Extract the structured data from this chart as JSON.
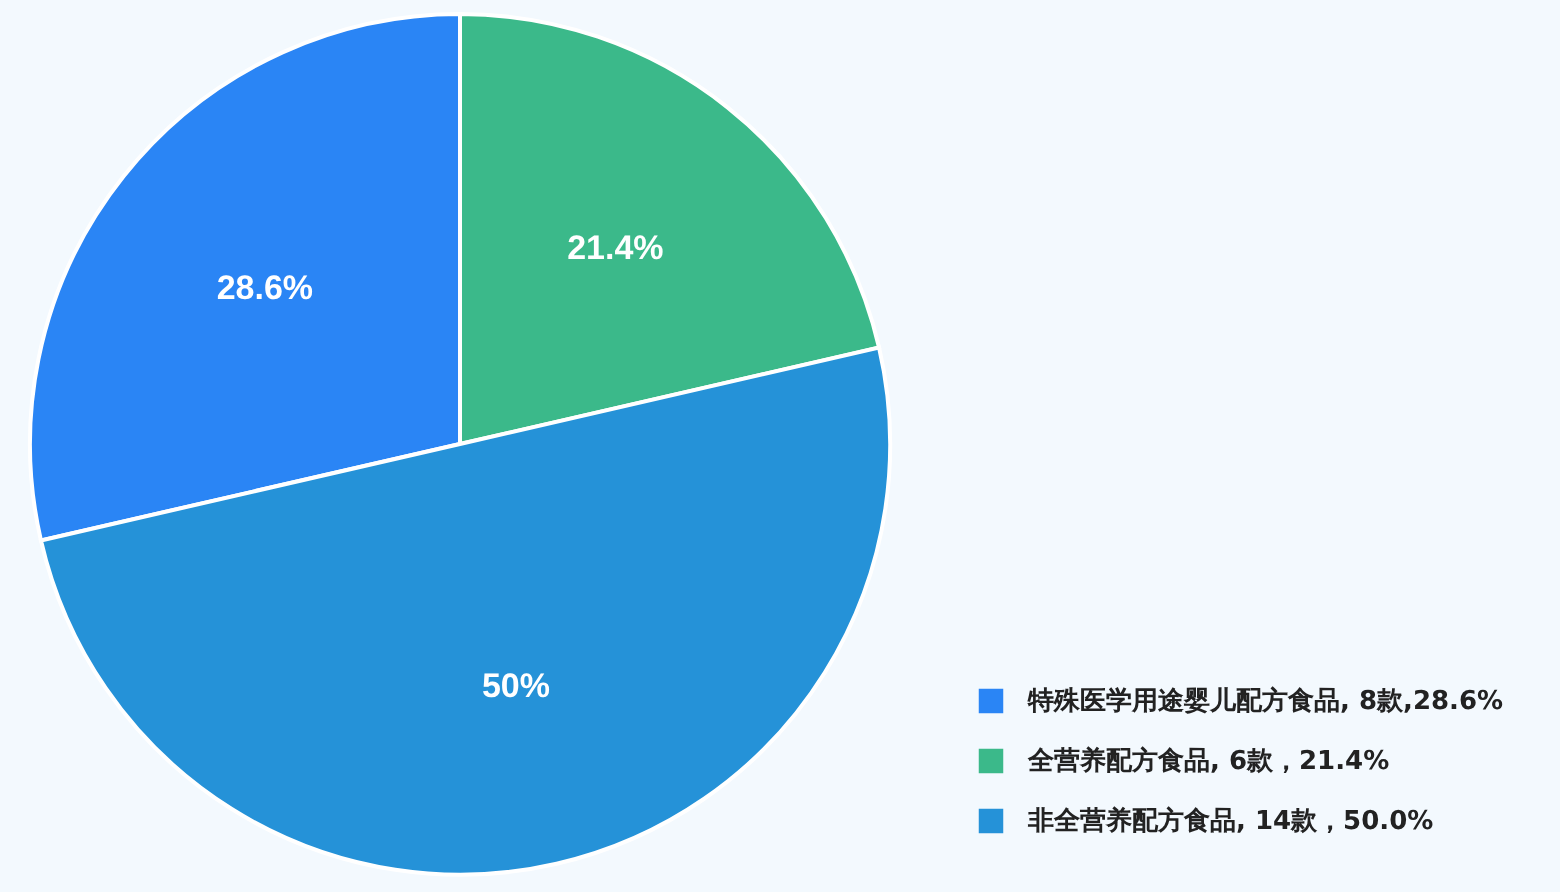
{
  "chart_data": {
    "type": "pie",
    "categories": [
      "特殊医学用途婴儿配方食品, 8款,28.6%",
      "全营养配方食品, 6款，21.4%",
      "非全营养配方食品, 14款，50.0%"
    ],
    "values": [
      28.6,
      21.4,
      50
    ],
    "colors": [
      "#2a85f5",
      "#3bb98a",
      "#2592d8"
    ],
    "value_labels": [
      "28.6%",
      "21.4%",
      "50%"
    ],
    "legend": "bottom right"
  }
}
